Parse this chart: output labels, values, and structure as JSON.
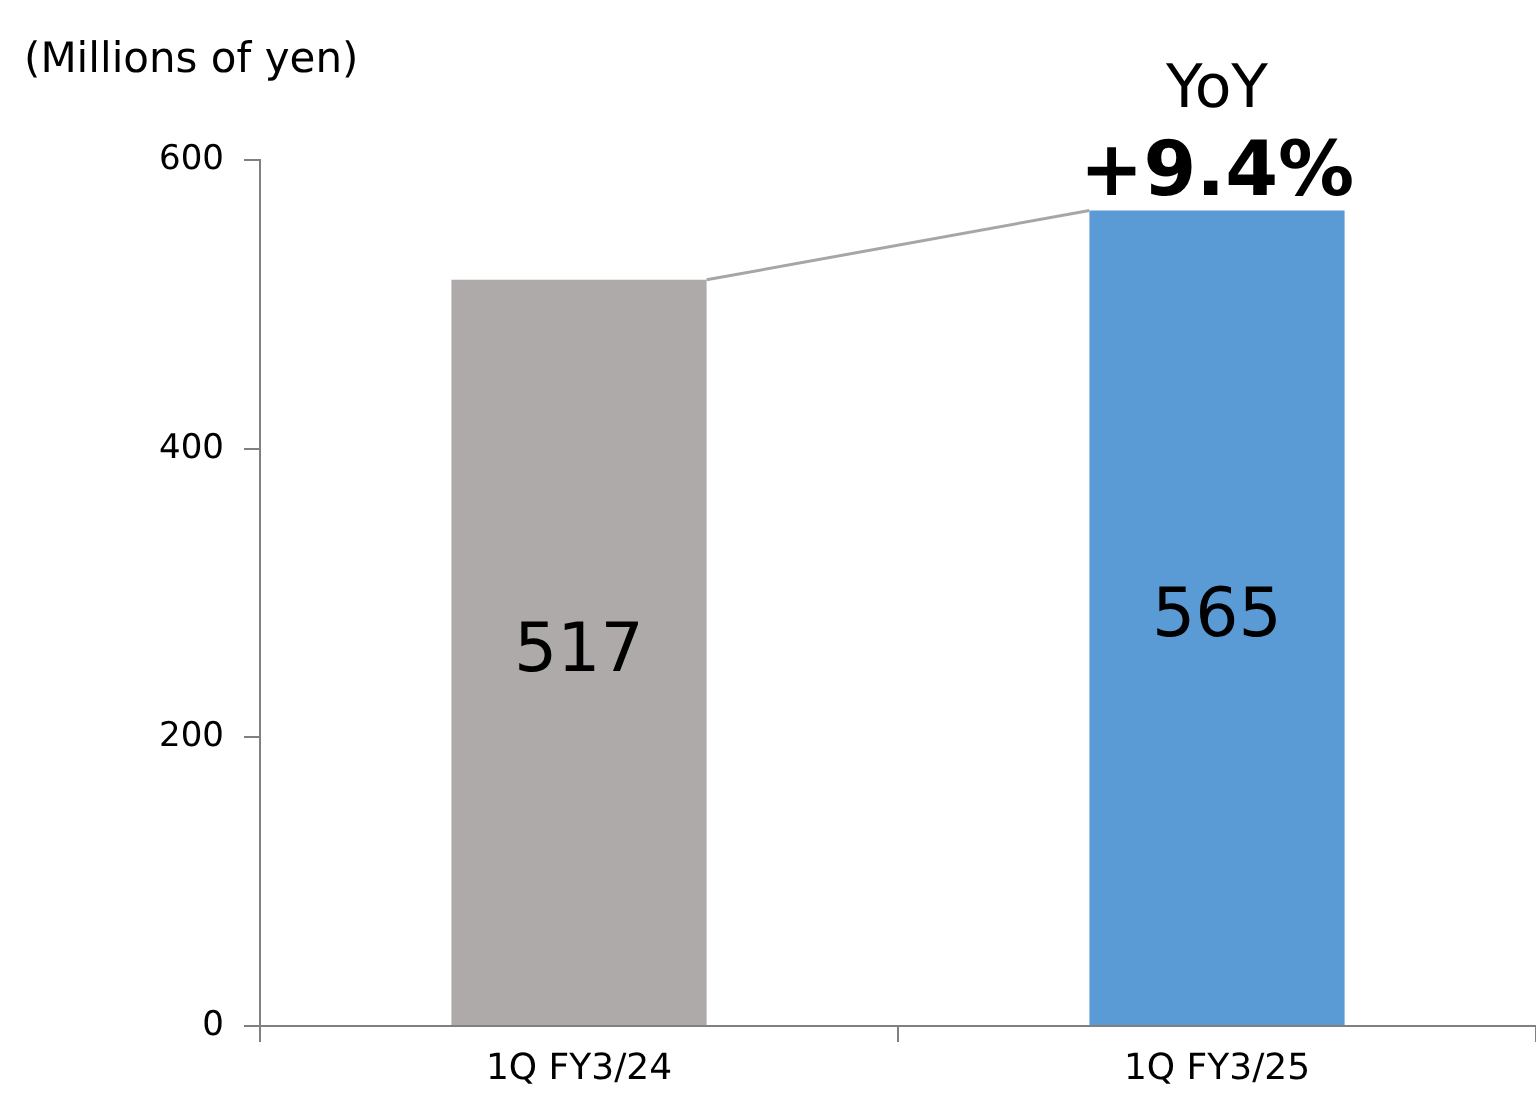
{
  "chart_data": {
    "type": "bar",
    "ylabel": "(Millions of yen)",
    "categories": [
      "1Q FY3/24",
      "1Q FY3/25"
    ],
    "values": [
      517,
      565
    ],
    "colors": [
      "#aeaaaa",
      "#5b9bd5"
    ],
    "ylim": [
      0,
      600
    ],
    "yticks": [
      0,
      200,
      400,
      600
    ],
    "grid": false,
    "legend": false,
    "data_labels": true,
    "annotations": [
      {
        "text": "YoY",
        "x": "1Q FY3/25",
        "y": 565
      },
      {
        "text": "+9.4%",
        "x": "1Q FY3/25",
        "y": 565
      }
    ]
  }
}
